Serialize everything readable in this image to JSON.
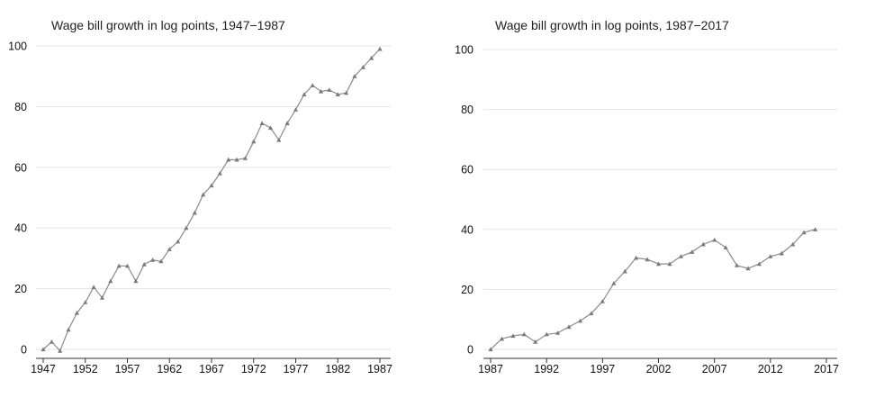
{
  "colors": {
    "series": "#8c8c8c",
    "marker": "#7a7a7a",
    "grid": "#e6e6e6",
    "axis": "#333333"
  },
  "chart_data": [
    {
      "type": "line",
      "title": "Wage bill growth in log points, 1947−1987",
      "xlabel": "",
      "ylabel": "",
      "xlim": [
        1947,
        1987
      ],
      "ylim": [
        0,
        100
      ],
      "grid": true,
      "marker": "triangle",
      "y_ticks": [
        "0",
        "20",
        "40",
        "60",
        "80",
        "100"
      ],
      "x_ticks": [
        "1947",
        "1952",
        "1957",
        "1962",
        "1967",
        "1972",
        "1977",
        "1982",
        "1987"
      ],
      "series": [
        {
          "x": [
            1947,
            1948,
            1949,
            1950,
            1951,
            1952,
            1953,
            1954,
            1955,
            1956,
            1957,
            1958,
            1959,
            1960,
            1961,
            1962,
            1963,
            1964,
            1965,
            1966,
            1967,
            1968,
            1969,
            1970,
            1971,
            1972,
            1973,
            1974,
            1975,
            1976,
            1977,
            1978,
            1979,
            1980,
            1981,
            1982,
            1983,
            1984,
            1985,
            1986,
            1987
          ],
          "y": [
            0,
            2.5,
            -0.5,
            6.5,
            12,
            15.5,
            20.5,
            17,
            22.5,
            27.5,
            27.5,
            22.5,
            28,
            29.5,
            29,
            33,
            35.5,
            40,
            45,
            51,
            54,
            58,
            62.5,
            62.5,
            63,
            68.5,
            74.5,
            73,
            69,
            74.5,
            79,
            84,
            87,
            85,
            85.5,
            84,
            84.5,
            90,
            93,
            96,
            99
          ]
        }
      ]
    },
    {
      "type": "line",
      "title": "Wage bill growth in log points, 1987−2017",
      "xlabel": "",
      "ylabel": "",
      "xlim": [
        1987,
        2017
      ],
      "ylim": [
        0,
        100
      ],
      "grid": true,
      "marker": "triangle",
      "y_ticks": [
        "0",
        "20",
        "40",
        "60",
        "80",
        "100"
      ],
      "x_ticks": [
        "1987",
        "1992",
        "1997",
        "2002",
        "2007",
        "2012",
        "2017"
      ],
      "series": [
        {
          "x": [
            1987,
            1988,
            1989,
            1990,
            1991,
            1992,
            1993,
            1994,
            1995,
            1996,
            1997,
            1998,
            1999,
            2000,
            2001,
            2002,
            2003,
            2004,
            2005,
            2006,
            2007,
            2008,
            2009,
            2010,
            2011,
            2012,
            2013,
            2014,
            2015,
            2016
          ],
          "y": [
            0,
            3.5,
            4.5,
            5,
            2.5,
            5,
            5.5,
            7.5,
            9.5,
            12,
            16,
            22,
            26,
            30.5,
            30,
            28.5,
            28.5,
            31,
            32.5,
            35,
            36.5,
            34,
            28,
            27,
            28.5,
            31,
            32,
            35,
            39,
            40
          ]
        }
      ]
    }
  ]
}
